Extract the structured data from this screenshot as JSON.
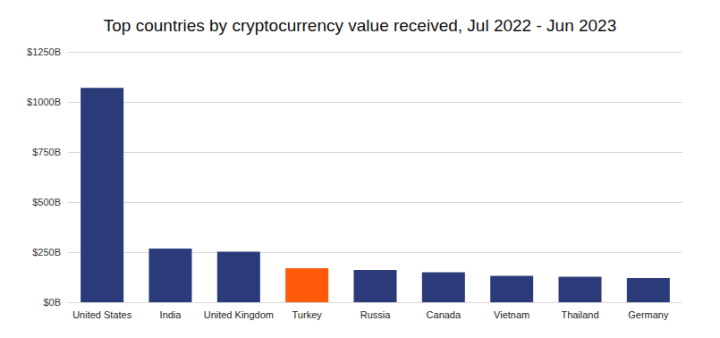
{
  "chart_data": {
    "type": "bar",
    "title": "Top countries by cryptocurrency value received, Jul 2022 - Jun 2023",
    "categories": [
      "United States",
      "India",
      "United Kingdom",
      "Turkey",
      "Russia",
      "Canada",
      "Vietnam",
      "Thailand",
      "Germany"
    ],
    "values": [
      1070,
      268,
      252,
      170,
      161,
      150,
      132,
      127,
      120
    ],
    "colors": [
      "#2b3a78",
      "#2b3a78",
      "#2b3a78",
      "#ff5a0a",
      "#2b3a78",
      "#2b3a78",
      "#2b3a78",
      "#2b3a78",
      "#2b3a78"
    ],
    "ylim": [
      0,
      1250
    ],
    "yticks": [
      {
        "value": 0,
        "label": "$0B"
      },
      {
        "value": 250,
        "label": "$250B"
      },
      {
        "value": 500,
        "label": "$500B"
      },
      {
        "value": 750,
        "label": "$750B"
      },
      {
        "value": 1000,
        "label": "$1000B"
      },
      {
        "value": 1250,
        "label": "$1250B"
      }
    ],
    "grid": true
  }
}
